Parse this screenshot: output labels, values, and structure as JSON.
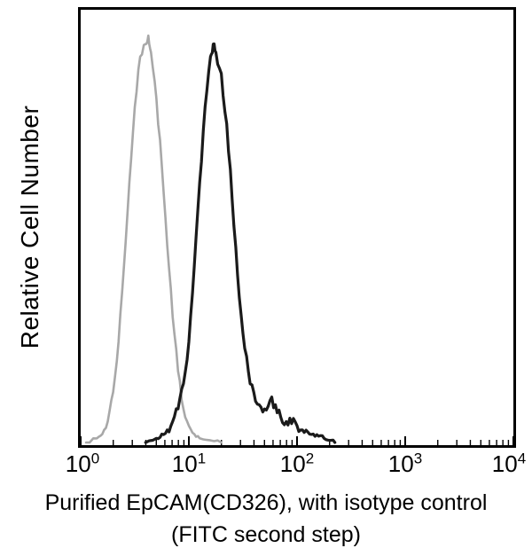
{
  "figure": {
    "y_axis_label": "Relative Cell Number",
    "x_ticks": [
      {
        "base": "10",
        "exp": "0"
      },
      {
        "base": "10",
        "exp": "1"
      },
      {
        "base": "10",
        "exp": "2"
      },
      {
        "base": "10",
        "exp": "3"
      },
      {
        "base": "10",
        "exp": "4"
      }
    ],
    "caption_line1": "Purified EpCAM(CD326), with isotype control",
    "caption_line2": "(FITC second step)",
    "colors": {
      "sample_curve": "#1a1a1a",
      "control_curve": "#a8a8a8",
      "axis": "#000000",
      "background": "#ffffff"
    }
  },
  "chart_data": {
    "type": "line",
    "subtype": "flow-cytometry-histogram-overlay",
    "title": "",
    "xlabel": "Purified EpCAM(CD326), with isotype control (FITC second step)",
    "ylabel": "Relative Cell Number",
    "x_scale": "log10",
    "xlim": [
      1,
      10000
    ],
    "x_tick_values": [
      1,
      10,
      100,
      1000,
      10000
    ],
    "ylim_relative": [
      0,
      1
    ],
    "grid": false,
    "legend": "none",
    "series": [
      {
        "name": "Isotype control (gray)",
        "color": "#a8a8a8",
        "peak_x": 4.2,
        "x_log10": [
          0.05,
          0.1,
          0.15,
          0.2,
          0.25,
          0.3,
          0.35,
          0.4,
          0.45,
          0.5,
          0.55,
          0.6,
          0.625,
          0.65,
          0.7,
          0.75,
          0.8,
          0.85,
          0.9,
          0.95,
          1.0,
          1.05,
          1.1,
          1.2,
          1.3
        ],
        "y_rel": [
          0.0,
          0.005,
          0.01,
          0.02,
          0.05,
          0.12,
          0.24,
          0.42,
          0.62,
          0.8,
          0.92,
          0.95,
          0.97,
          0.93,
          0.82,
          0.66,
          0.47,
          0.3,
          0.17,
          0.08,
          0.04,
          0.02,
          0.01,
          0.005,
          0.0
        ]
      },
      {
        "name": "Purified EpCAM(CD326), FITC second step (black)",
        "color": "#1a1a1a",
        "peak_x": 17,
        "x_log10": [
          0.6,
          0.7,
          0.75,
          0.8,
          0.85,
          0.9,
          0.95,
          1.0,
          1.05,
          1.1,
          1.15,
          1.2,
          1.225,
          1.25,
          1.3,
          1.35,
          1.4,
          1.45,
          1.5,
          1.55,
          1.6,
          1.65,
          1.7,
          1.75,
          1.8,
          1.85,
          1.9,
          1.95,
          2.0,
          2.05,
          2.1,
          2.15,
          2.2,
          2.25,
          2.3,
          2.35
        ],
        "y_rel": [
          0.0,
          0.01,
          0.02,
          0.03,
          0.05,
          0.08,
          0.14,
          0.24,
          0.42,
          0.62,
          0.8,
          0.92,
          0.95,
          0.93,
          0.88,
          0.76,
          0.58,
          0.4,
          0.26,
          0.17,
          0.12,
          0.09,
          0.08,
          0.1,
          0.09,
          0.06,
          0.05,
          0.045,
          0.04,
          0.03,
          0.025,
          0.02,
          0.015,
          0.01,
          0.005,
          0.0
        ]
      }
    ]
  }
}
